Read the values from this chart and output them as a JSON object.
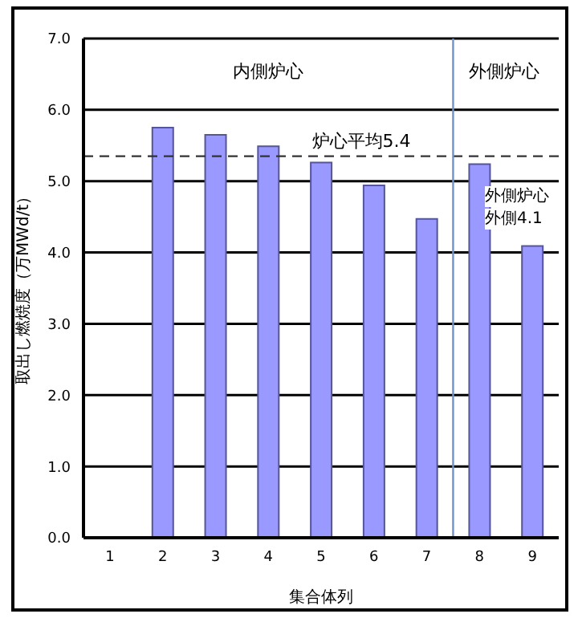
{
  "chart_data": {
    "type": "bar",
    "xlabel": "集合体列",
    "ylabel": "取出し燃焼度（万MWd/t）",
    "x": [
      2,
      3,
      4,
      5,
      6,
      7,
      8,
      9
    ],
    "values": [
      5.75,
      5.65,
      5.49,
      5.26,
      4.94,
      4.47,
      5.24,
      4.09
    ],
    "color": "#9999ff",
    "xlim": [
      0.5,
      9.5
    ],
    "xticks": [
      1,
      2,
      3,
      4,
      5,
      6,
      7,
      8,
      9
    ],
    "ylim": [
      0,
      7
    ],
    "yticks": [
      {
        "value": 0,
        "label": "0.0"
      },
      {
        "value": 1,
        "label": "1.0"
      },
      {
        "value": 2,
        "label": "2.0"
      },
      {
        "value": 3,
        "label": "3.0"
      },
      {
        "value": 4,
        "label": "4.0"
      },
      {
        "value": 5,
        "label": "5.0"
      },
      {
        "value": 6,
        "label": "6.0"
      },
      {
        "value": 7,
        "label": "7.0"
      }
    ],
    "grid": "y",
    "ref_lines": [
      {
        "axis": "y",
        "value": 5.35,
        "label": "炉心平均5.4",
        "line_style": "dashed",
        "color": "#333333"
      },
      {
        "axis": "x",
        "value": 7.5,
        "label": null,
        "color": "#6f93c6"
      }
    ],
    "annotations": [
      "内側炉心",
      "外側炉心",
      "外側炉心",
      "外側4.1"
    ]
  }
}
